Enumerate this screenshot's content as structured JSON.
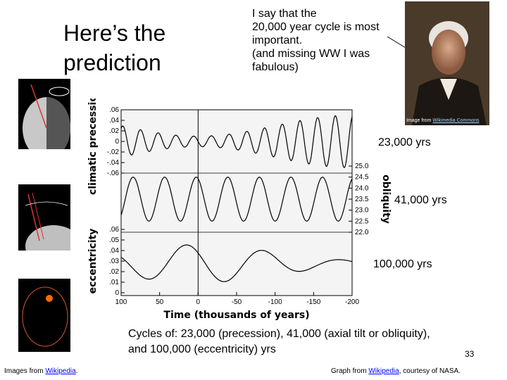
{
  "title_line1": "Here’s the",
  "title_line2": "prediction",
  "quote_lines": [
    "I say that the",
    "20,000 year cycle is most",
    "important.",
    "(and missing WW I was",
    "fabulous)"
  ],
  "portrait_credit_prefix": "Image from ",
  "portrait_credit_link": "Wikimedia Commons",
  "cycle_labels": [
    "23,000 yrs",
    "41,000 yrs",
    "100,000 yrs"
  ],
  "bottom_text_line1": "Cycles of: 23,000 (precession), 41,000 (axial tilt or obliquity),",
  "bottom_text_line2": "and 100,000 (eccentricity) yrs",
  "page_number": "33",
  "footer_left_prefix": "Images from ",
  "footer_left_link": "Wikipedia",
  "footer_left_suffix": ".",
  "footer_right_prefix": "Graph from ",
  "footer_right_link": "Wikipedia",
  "footer_right_suffix": ", courtesy of NASA.",
  "chart_data": {
    "type": "line",
    "xlabel": "Time (thousands of years)",
    "x_ticks": [
      "100",
      "50",
      "0",
      "-50",
      "-100",
      "-150",
      "-200"
    ],
    "xlim": [
      100,
      -200
    ],
    "panels": [
      {
        "ylabel": "climatic precession",
        "y_ticks": [
          ".06",
          ".04",
          ".02",
          "0",
          "-.02",
          "-.04",
          "-.06"
        ],
        "ylim": [
          -0.06,
          0.06
        ],
        "period_kyr": 23,
        "amplitude": [
          0.01,
          0.05
        ]
      },
      {
        "ylabel": "obliquity",
        "y_ticks": [
          "25.0",
          "24.5",
          "24.0",
          "23.5",
          "23.0",
          "22.5",
          "22.0"
        ],
        "ylim": [
          22.0,
          25.0
        ],
        "period_kyr": 41,
        "center": 23.5,
        "amplitude": 1.0
      },
      {
        "ylabel": "eccentricity",
        "y_ticks": [
          ".06",
          ".05",
          ".04",
          ".03",
          ".02",
          ".01",
          "0"
        ],
        "ylim": [
          0,
          0.06
        ],
        "period_kyr": 100,
        "range": [
          0.005,
          0.05
        ]
      }
    ]
  }
}
